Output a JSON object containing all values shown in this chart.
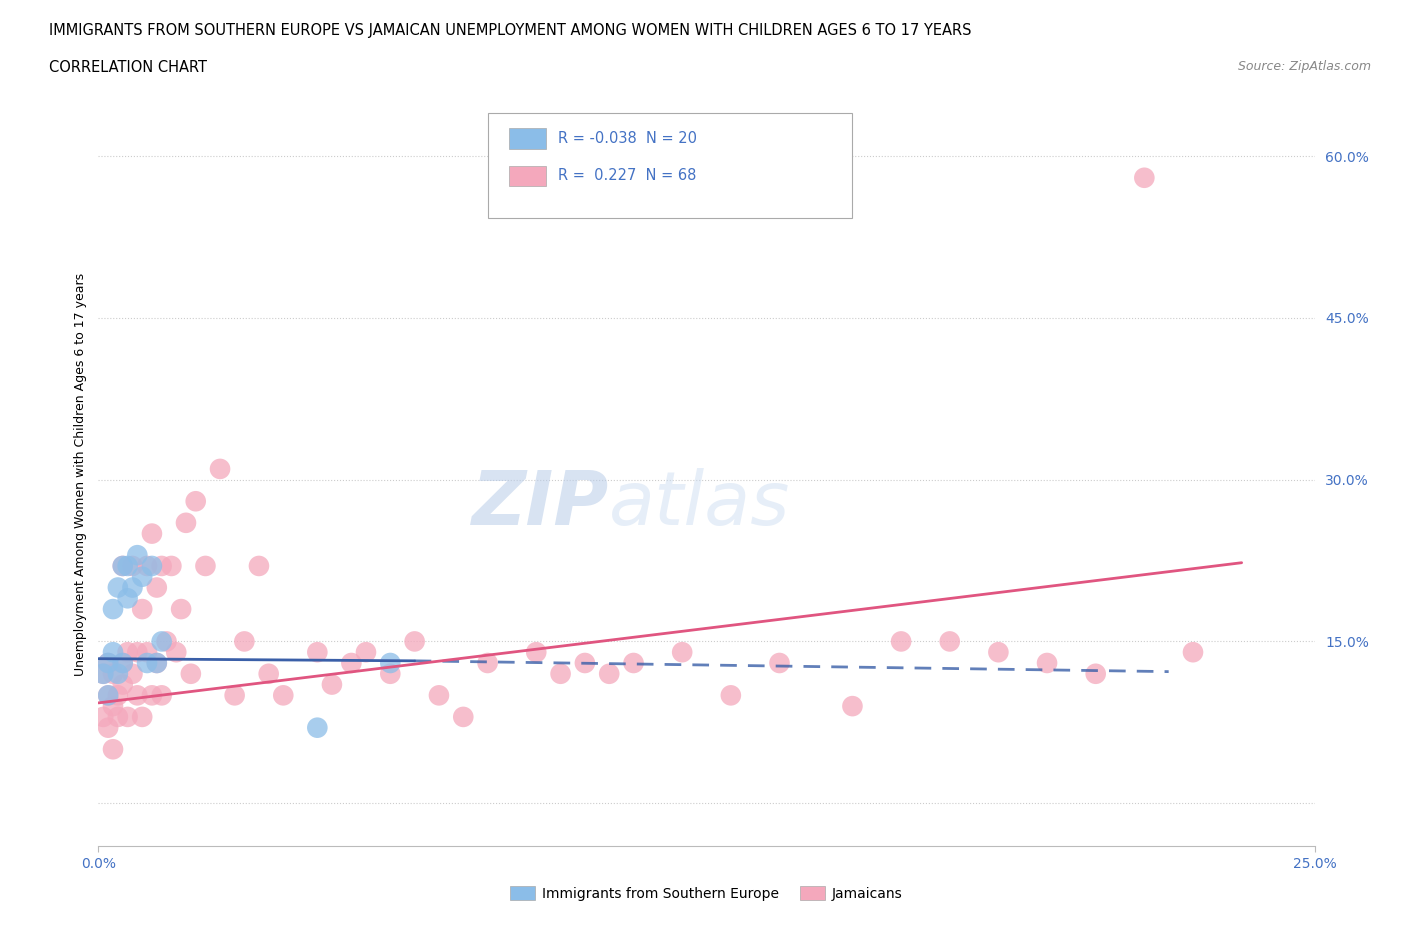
{
  "title_line1": "IMMIGRANTS FROM SOUTHERN EUROPE VS JAMAICAN UNEMPLOYMENT AMONG WOMEN WITH CHILDREN AGES 6 TO 17 YEARS",
  "title_line2": "CORRELATION CHART",
  "source": "Source: ZipAtlas.com",
  "ylabel": "Unemployment Among Women with Children Ages 6 to 17 years",
  "xlim": [
    0.0,
    0.25
  ],
  "ylim": [
    -0.04,
    0.65
  ],
  "ytick_positions": [
    0.0,
    0.15,
    0.3,
    0.45,
    0.6
  ],
  "ytick_labels": [
    "",
    "15.0%",
    "30.0%",
    "45.0%",
    "60.0%"
  ],
  "blue_R": "-0.038",
  "blue_N": "20",
  "pink_R": "0.227",
  "pink_N": "68",
  "blue_color": "#8bbde8",
  "pink_color": "#f4a8bc",
  "blue_line_color": "#3a5fa8",
  "pink_line_color": "#e05580",
  "legend_label_blue": "Immigrants from Southern Europe",
  "legend_label_pink": "Jamaicans",
  "watermark_zip": "ZIP",
  "watermark_atlas": "atlas",
  "blue_scatter_x": [
    0.001,
    0.002,
    0.002,
    0.003,
    0.003,
    0.004,
    0.004,
    0.005,
    0.005,
    0.006,
    0.006,
    0.007,
    0.008,
    0.009,
    0.01,
    0.011,
    0.012,
    0.013,
    0.045,
    0.06
  ],
  "blue_scatter_y": [
    0.12,
    0.1,
    0.13,
    0.14,
    0.18,
    0.12,
    0.2,
    0.13,
    0.22,
    0.19,
    0.22,
    0.2,
    0.23,
    0.21,
    0.13,
    0.22,
    0.13,
    0.15,
    0.07,
    0.13
  ],
  "pink_scatter_x": [
    0.001,
    0.001,
    0.002,
    0.002,
    0.002,
    0.003,
    0.003,
    0.003,
    0.004,
    0.004,
    0.005,
    0.005,
    0.005,
    0.006,
    0.006,
    0.007,
    0.007,
    0.008,
    0.008,
    0.009,
    0.009,
    0.01,
    0.01,
    0.011,
    0.011,
    0.012,
    0.012,
    0.013,
    0.013,
    0.014,
    0.015,
    0.016,
    0.017,
    0.018,
    0.019,
    0.02,
    0.022,
    0.025,
    0.028,
    0.03,
    0.033,
    0.035,
    0.038,
    0.045,
    0.048,
    0.052,
    0.055,
    0.06,
    0.065,
    0.07,
    0.075,
    0.08,
    0.09,
    0.095,
    0.1,
    0.105,
    0.11,
    0.12,
    0.13,
    0.14,
    0.155,
    0.165,
    0.175,
    0.185,
    0.195,
    0.205,
    0.215,
    0.225
  ],
  "pink_scatter_y": [
    0.08,
    0.12,
    0.1,
    0.07,
    0.13,
    0.09,
    0.12,
    0.05,
    0.1,
    0.08,
    0.11,
    0.13,
    0.22,
    0.08,
    0.14,
    0.12,
    0.22,
    0.1,
    0.14,
    0.18,
    0.08,
    0.14,
    0.22,
    0.1,
    0.25,
    0.13,
    0.2,
    0.22,
    0.1,
    0.15,
    0.22,
    0.14,
    0.18,
    0.26,
    0.12,
    0.28,
    0.22,
    0.31,
    0.1,
    0.15,
    0.22,
    0.12,
    0.1,
    0.14,
    0.11,
    0.13,
    0.14,
    0.12,
    0.15,
    0.1,
    0.08,
    0.13,
    0.14,
    0.12,
    0.13,
    0.12,
    0.13,
    0.14,
    0.1,
    0.13,
    0.09,
    0.15,
    0.15,
    0.14,
    0.13,
    0.12,
    0.58,
    0.14
  ],
  "blue_trend_x0": 0.0,
  "blue_trend_x_solid_end": 0.065,
  "blue_trend_x_dash_end": 0.22,
  "blue_trend_y0": 0.134,
  "blue_trend_y_solid_end": 0.132,
  "blue_trend_y_dash_end": 0.122,
  "pink_trend_x0": 0.0,
  "pink_trend_x_end": 0.235,
  "pink_trend_y0": 0.093,
  "pink_trend_y_end": 0.223
}
